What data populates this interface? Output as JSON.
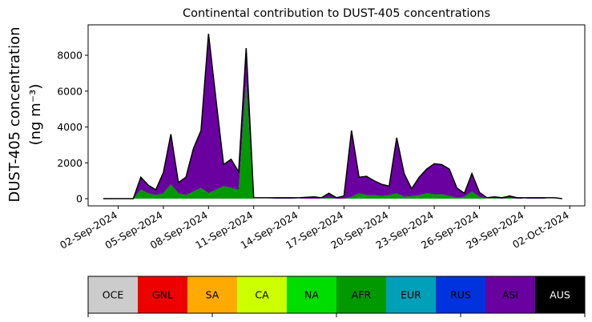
{
  "chart_data": {
    "type": "area",
    "title": "Continental contribution to DUST-405 concentrations",
    "ylabel_line1": "DUST-405 concentration",
    "ylabel_line2": "(ng m⁻³)",
    "xlabel": "",
    "ylim": [
      -400,
      9700
    ],
    "yticks": [
      0,
      2000,
      4000,
      6000,
      8000
    ],
    "xlim": [
      "2024-08-31",
      "2024-10-03"
    ],
    "xticks": [
      "02-Sep-2024",
      "05-Sep-2024",
      "08-Sep-2024",
      "11-Sep-2024",
      "14-Sep-2024",
      "17-Sep-2024",
      "20-Sep-2024",
      "23-Sep-2024",
      "26-Sep-2024",
      "29-Sep-2024",
      "02-Oct-2024"
    ],
    "x_dates": [
      "2024-09-01",
      "2024-09-02",
      "2024-09-02T12",
      "2024-09-03",
      "2024-09-03T12",
      "2024-09-04",
      "2024-09-04T12",
      "2024-09-05",
      "2024-09-05T12",
      "2024-09-06",
      "2024-09-06T12",
      "2024-09-07",
      "2024-09-07T12",
      "2024-09-08",
      "2024-09-08T12",
      "2024-09-09",
      "2024-09-09T12",
      "2024-09-10",
      "2024-09-10T12",
      "2024-09-11",
      "2024-09-11T12",
      "2024-09-12",
      "2024-09-13",
      "2024-09-14",
      "2024-09-15",
      "2024-09-15T12",
      "2024-09-16",
      "2024-09-16T12",
      "2024-09-17",
      "2024-09-17T12",
      "2024-09-18",
      "2024-09-18T12",
      "2024-09-19",
      "2024-09-19T12",
      "2024-09-20",
      "2024-09-20T12",
      "2024-09-21",
      "2024-09-21T12",
      "2024-09-22",
      "2024-09-22T12",
      "2024-09-23",
      "2024-09-23T12",
      "2024-09-24",
      "2024-09-24T12",
      "2024-09-25",
      "2024-09-25T12",
      "2024-09-26",
      "2024-09-26T12",
      "2024-09-27",
      "2024-09-27T12",
      "2024-09-28",
      "2024-09-28T12",
      "2024-09-29",
      "2024-09-29T12",
      "2024-09-30",
      "2024-09-30T12",
      "2024-10-01",
      "2024-10-01T12"
    ],
    "series": [
      {
        "name": "AFR",
        "color": "#009900",
        "values": [
          0,
          0,
          0,
          0,
          500,
          300,
          200,
          300,
          800,
          300,
          200,
          400,
          600,
          300,
          500,
          700,
          600,
          500,
          6500,
          0,
          0,
          0,
          0,
          0,
          0,
          0,
          50,
          0,
          0,
          100,
          300,
          200,
          200,
          150,
          200,
          300,
          100,
          150,
          200,
          300,
          250,
          250,
          150,
          50,
          100,
          400,
          100,
          0,
          50,
          0,
          50,
          0,
          0,
          0,
          0,
          0,
          0,
          0
        ]
      },
      {
        "name": "ASI",
        "color": "#6a00a0",
        "values": [
          0,
          0,
          0,
          0,
          700,
          450,
          300,
          1150,
          2800,
          600,
          1000,
          2400,
          3200,
          8900,
          5000,
          1200,
          1600,
          1000,
          1900,
          0,
          0,
          0,
          50,
          0,
          100,
          0,
          250,
          50,
          150,
          3700,
          900,
          1050,
          800,
          650,
          500,
          3100,
          1300,
          400,
          1000,
          1350,
          1700,
          1650,
          1500,
          550,
          200,
          1000,
          250,
          0,
          50,
          50,
          100,
          50,
          0,
          50,
          50,
          0,
          0,
          0
        ]
      }
    ],
    "total": [
      0,
      0,
      0,
      0,
      1200,
      750,
      500,
      1450,
      3600,
      900,
      1200,
      2800,
      3800,
      9200,
      5500,
      1900,
      2200,
      1500,
      8400,
      50,
      50,
      50,
      50,
      50,
      100,
      50,
      300,
      50,
      150,
      3800,
      1200,
      1250,
      1000,
      800,
      700,
      3400,
      1400,
      550,
      1200,
      1650,
      1950,
      1900,
      1650,
      600,
      300,
      1400,
      350,
      50,
      100,
      50,
      150,
      50,
      50,
      50,
      50,
      50,
      50,
      0
    ]
  },
  "legend": {
    "items": [
      {
        "label": "OCE",
        "color": "#cccccc",
        "text_color": "#000000"
      },
      {
        "label": "GNL",
        "color": "#ee0000",
        "text_color": "#000000"
      },
      {
        "label": "SA",
        "color": "#ffaa00",
        "text_color": "#000000"
      },
      {
        "label": "CA",
        "color": "#ccff00",
        "text_color": "#000000"
      },
      {
        "label": "NA",
        "color": "#00dd00",
        "text_color": "#000000"
      },
      {
        "label": "AFR",
        "color": "#009900",
        "text_color": "#000000"
      },
      {
        "label": "EUR",
        "color": "#00a0b8",
        "text_color": "#000000"
      },
      {
        "label": "RUS",
        "color": "#0033dd",
        "text_color": "#000000"
      },
      {
        "label": "ASI",
        "color": "#6a00a0",
        "text_color": "#000000"
      },
      {
        "label": "AUS",
        "color": "#000000",
        "text_color": "#ffffff"
      }
    ]
  }
}
